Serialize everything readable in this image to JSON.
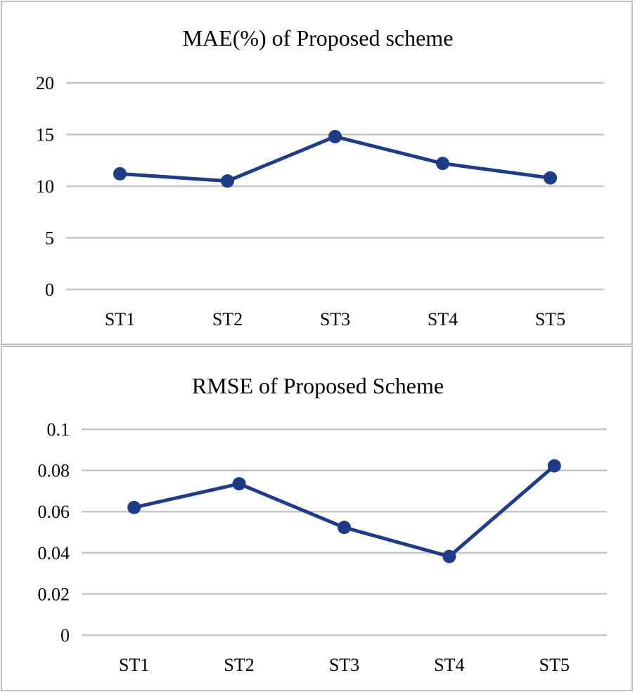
{
  "colors": {
    "series": "#1f3c88",
    "grid": "#c6c6c6",
    "border": "#bfbfbf"
  },
  "chart_data": [
    {
      "type": "line",
      "title": "MAE(%) of Proposed scheme",
      "categories": [
        "ST1",
        "ST2",
        "ST3",
        "ST4",
        "ST5"
      ],
      "series": [
        {
          "name": "MAE(%)",
          "values": [
            11.2,
            10.5,
            14.8,
            12.2,
            10.8
          ]
        }
      ],
      "ylim": [
        0,
        20
      ],
      "yticks": [
        "0",
        "5",
        "10",
        "15",
        "20"
      ],
      "grid": true
    },
    {
      "type": "line",
      "title": "RMSE of Proposed Scheme",
      "categories": [
        "ST1",
        "ST2",
        "ST3",
        "ST4",
        "ST5"
      ],
      "series": [
        {
          "name": "RMSE",
          "values": [
            0.062,
            0.0735,
            0.0523,
            0.0382,
            0.0822
          ]
        }
      ],
      "ylim": [
        0,
        0.1
      ],
      "yticks": [
        "0",
        "0.02",
        "0.04",
        "0.06",
        "0.08",
        "0.1"
      ],
      "grid": true
    }
  ]
}
